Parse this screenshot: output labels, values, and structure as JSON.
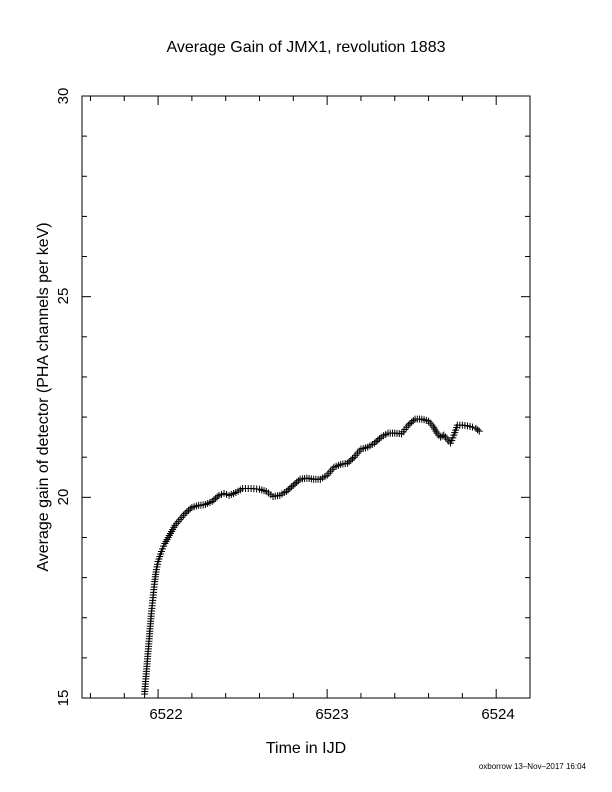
{
  "chart_data": {
    "type": "scatter",
    "title": "Average Gain of JMX1, revolution 1883",
    "xlabel": "Time in IJD",
    "ylabel": "Average gain of detector (PHA channels per keV)",
    "xlim": [
      6521.55,
      6524.2
    ],
    "ylim": [
      15,
      30
    ],
    "x_ticks": [
      "6522",
      "6523",
      "6524"
    ],
    "y_ticks": [
      "15",
      "20",
      "25",
      "30"
    ],
    "marker": "+",
    "grid": false,
    "colors": {
      "marker": "#000000",
      "axis": "#000000"
    },
    "series": [
      {
        "points": [
          [
            6521.92,
            15.1
          ],
          [
            6521.93,
            15.6
          ],
          [
            6521.94,
            16.1
          ],
          [
            6521.95,
            16.6
          ],
          [
            6521.96,
            17.1
          ],
          [
            6521.97,
            17.5
          ],
          [
            6521.98,
            17.9
          ],
          [
            6521.99,
            18.2
          ],
          [
            6522.0,
            18.4
          ],
          [
            6522.02,
            18.65
          ],
          [
            6522.04,
            18.85
          ],
          [
            6522.06,
            19.0
          ],
          [
            6522.08,
            19.15
          ],
          [
            6522.1,
            19.3
          ],
          [
            6522.13,
            19.45
          ],
          [
            6522.16,
            19.6
          ],
          [
            6522.2,
            19.75
          ],
          [
            6522.24,
            19.8
          ],
          [
            6522.28,
            19.82
          ],
          [
            6522.32,
            19.9
          ],
          [
            6522.36,
            20.05
          ],
          [
            6522.39,
            20.1
          ],
          [
            6522.42,
            20.05
          ],
          [
            6522.46,
            20.12
          ],
          [
            6522.5,
            20.22
          ],
          [
            6522.55,
            20.22
          ],
          [
            6522.6,
            20.2
          ],
          [
            6522.64,
            20.15
          ],
          [
            6522.68,
            20.02
          ],
          [
            6522.72,
            20.05
          ],
          [
            6522.76,
            20.15
          ],
          [
            6522.8,
            20.3
          ],
          [
            6522.84,
            20.45
          ],
          [
            6522.88,
            20.48
          ],
          [
            6522.92,
            20.45
          ],
          [
            6522.96,
            20.45
          ],
          [
            6523.0,
            20.55
          ],
          [
            6523.04,
            20.75
          ],
          [
            6523.08,
            20.82
          ],
          [
            6523.12,
            20.85
          ],
          [
            6523.16,
            21.0
          ],
          [
            6523.2,
            21.2
          ],
          [
            6523.24,
            21.25
          ],
          [
            6523.28,
            21.35
          ],
          [
            6523.32,
            21.5
          ],
          [
            6523.36,
            21.6
          ],
          [
            6523.4,
            21.6
          ],
          [
            6523.44,
            21.58
          ],
          [
            6523.48,
            21.8
          ],
          [
            6523.52,
            21.95
          ],
          [
            6523.56,
            21.95
          ],
          [
            6523.6,
            21.9
          ],
          [
            6523.63,
            21.75
          ],
          [
            6523.65,
            21.6
          ],
          [
            6523.67,
            21.5
          ],
          [
            6523.69,
            21.55
          ],
          [
            6523.71,
            21.45
          ],
          [
            6523.73,
            21.35
          ],
          [
            6523.75,
            21.55
          ],
          [
            6523.77,
            21.8
          ],
          [
            6523.8,
            21.8
          ],
          [
            6523.83,
            21.78
          ],
          [
            6523.86,
            21.75
          ],
          [
            6523.88,
            21.72
          ],
          [
            6523.9,
            21.65
          ]
        ]
      }
    ]
  },
  "footer": {
    "stamp": "oxborrow 13–Nov–2017 16:04"
  }
}
